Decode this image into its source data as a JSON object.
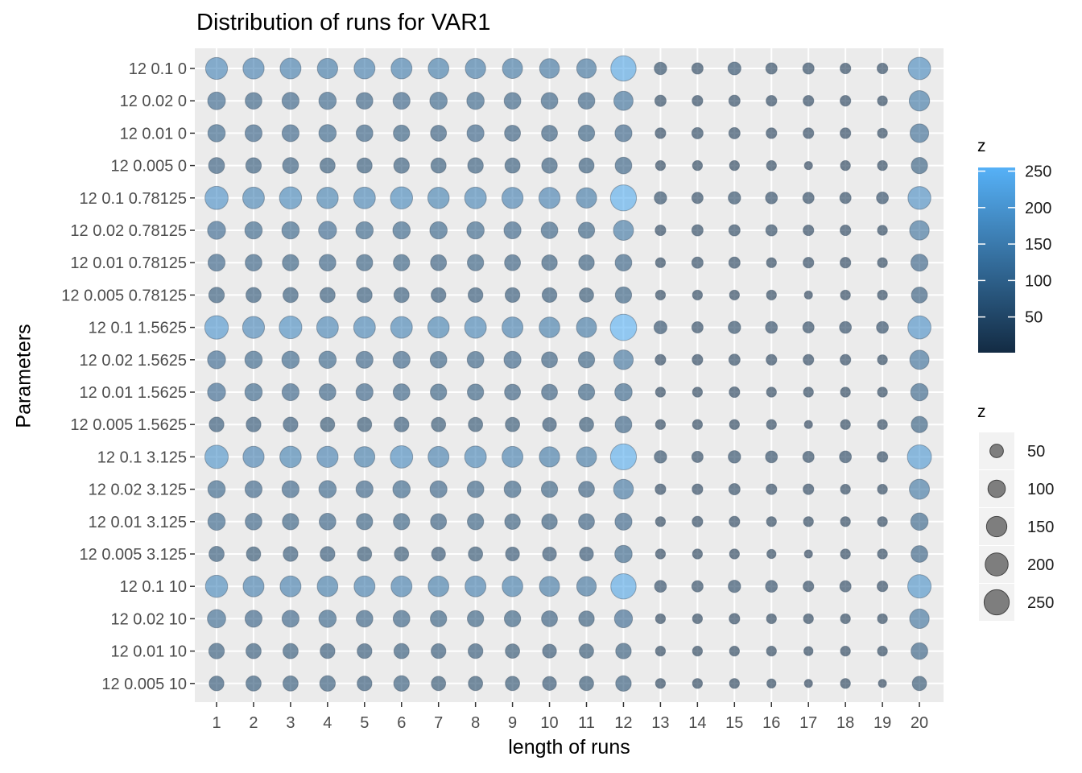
{
  "chart_data": {
    "type": "scatter",
    "title": "Distribution of runs for VAR1",
    "xlabel": "length of runs",
    "ylabel": "Parameters",
    "x": [
      1,
      2,
      3,
      4,
      5,
      6,
      7,
      8,
      9,
      10,
      11,
      12,
      13,
      14,
      15,
      16,
      17,
      18,
      19,
      20
    ],
    "categories": [
      "12 0.1 0",
      "12 0.02 0",
      "12 0.01 0",
      "12 0.005 0",
      "12 0.1 0.78125",
      "12 0.02 0.78125",
      "12 0.01 0.78125",
      "12 0.005 0.78125",
      "12 0.1 1.5625",
      "12 0.02 1.5625",
      "12 0.01 1.5625",
      "12 0.005 1.5625",
      "12 0.1 3.125",
      "12 0.02 3.125",
      "12 0.01 3.125",
      "12 0.005 3.125",
      "12 0.1 10",
      "12 0.02 10",
      "12 0.01 10",
      "12 0.005 10"
    ],
    "z": [
      [
        180,
        165,
        160,
        150,
        160,
        160,
        155,
        150,
        145,
        140,
        135,
        255,
        40,
        30,
        45,
        30,
        30,
        25,
        25,
        190
      ],
      [
        105,
        90,
        95,
        100,
        90,
        95,
        100,
        100,
        90,
        90,
        90,
        130,
        30,
        25,
        30,
        25,
        25,
        25,
        20,
        150
      ],
      [
        100,
        95,
        95,
        100,
        90,
        85,
        80,
        95,
        80,
        80,
        85,
        95,
        25,
        30,
        30,
        25,
        25,
        25,
        20,
        120
      ],
      [
        80,
        75,
        80,
        70,
        70,
        75,
        70,
        75,
        70,
        75,
        70,
        90,
        20,
        20,
        20,
        20,
        10,
        20,
        20,
        85
      ],
      [
        205,
        175,
        185,
        170,
        175,
        185,
        170,
        175,
        165,
        165,
        150,
        270,
        40,
        30,
        40,
        35,
        30,
        30,
        35,
        200
      ],
      [
        110,
        100,
        100,
        110,
        100,
        100,
        100,
        100,
        95,
        90,
        85,
        145,
        25,
        30,
        30,
        30,
        25,
        25,
        20,
        135
      ],
      [
        95,
        90,
        85,
        90,
        85,
        85,
        80,
        85,
        80,
        75,
        75,
        90,
        20,
        30,
        30,
        20,
        25,
        25,
        20,
        95
      ],
      [
        75,
        70,
        70,
        70,
        70,
        70,
        65,
        65,
        65,
        65,
        60,
        85,
        20,
        20,
        20,
        20,
        10,
        20,
        20,
        80
      ],
      [
        215,
        180,
        195,
        175,
        175,
        175,
        170,
        175,
        160,
        155,
        145,
        280,
        45,
        30,
        40,
        35,
        30,
        35,
        35,
        205
      ],
      [
        110,
        100,
        100,
        100,
        95,
        95,
        90,
        90,
        95,
        80,
        85,
        135,
        25,
        25,
        30,
        25,
        25,
        25,
        20,
        130
      ],
      [
        110,
        100,
        95,
        90,
        95,
        90,
        85,
        85,
        80,
        80,
        85,
        100,
        20,
        20,
        25,
        20,
        20,
        20,
        20,
        100
      ],
      [
        65,
        65,
        65,
        60,
        60,
        65,
        60,
        60,
        60,
        55,
        60,
        90,
        20,
        20,
        20,
        20,
        10,
        20,
        20,
        85
      ],
      [
        210,
        165,
        170,
        165,
        155,
        190,
        160,
        175,
        160,
        150,
        145,
        270,
        40,
        30,
        40,
        35,
        30,
        35,
        25,
        225
      ],
      [
        100,
        95,
        95,
        100,
        95,
        100,
        95,
        90,
        90,
        85,
        80,
        140,
        25,
        25,
        30,
        25,
        25,
        20,
        20,
        145
      ],
      [
        100,
        90,
        85,
        90,
        85,
        85,
        80,
        85,
        75,
        75,
        80,
        95,
        20,
        25,
        25,
        20,
        20,
        20,
        20,
        100
      ],
      [
        70,
        60,
        65,
        65,
        60,
        60,
        55,
        60,
        55,
        55,
        55,
        100,
        20,
        20,
        20,
        15,
        10,
        20,
        20,
        90
      ],
      [
        185,
        160,
        160,
        155,
        160,
        160,
        155,
        160,
        155,
        145,
        135,
        255,
        35,
        30,
        40,
        35,
        25,
        30,
        25,
        210
      ],
      [
        115,
        95,
        95,
        100,
        90,
        90,
        85,
        85,
        85,
        80,
        75,
        110,
        20,
        20,
        25,
        20,
        20,
        20,
        20,
        135
      ],
      [
        75,
        70,
        70,
        65,
        65,
        70,
        65,
        65,
        60,
        55,
        60,
        75,
        20,
        20,
        20,
        20,
        15,
        20,
        20,
        90
      ],
      [
        65,
        70,
        70,
        75,
        65,
        75,
        60,
        60,
        60,
        55,
        60,
        75,
        20,
        20,
        20,
        15,
        10,
        20,
        10,
        60
      ]
    ],
    "grid": true,
    "legend_placement": "right",
    "legends": [
      {
        "title": "z",
        "kind": "color",
        "ticks": [
          250,
          200,
          150,
          100,
          50
        ],
        "range": [
          1,
          255
        ],
        "low_color": "#132B43",
        "high_color": "#56B1F7"
      },
      {
        "title": "z",
        "kind": "size",
        "ticks": [
          50,
          100,
          150,
          200,
          250
        ],
        "point_color": "#777777"
      }
    ],
    "panel_background": "#EBEBEB",
    "grid_color": "#FFFFFF",
    "point_alpha": 0.6
  }
}
